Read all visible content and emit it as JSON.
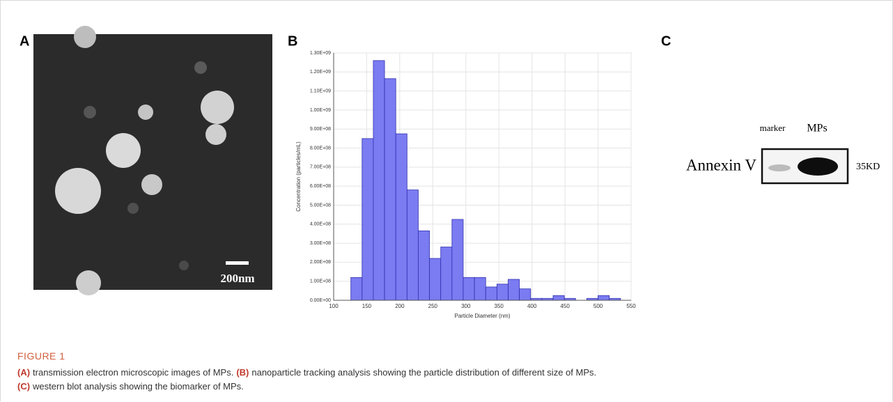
{
  "panels": {
    "a": {
      "label": "A",
      "scale_bar": "200nm"
    },
    "b": {
      "label": "B"
    },
    "c": {
      "label": "C",
      "lanes": [
        "marker",
        "MPs"
      ],
      "protein": "Annexin V",
      "size": "35KD"
    }
  },
  "chart_data": {
    "type": "histogram",
    "xlabel": "Particle Diameter (nm)",
    "ylabel": "Concentration (particles/mL)",
    "bins": [
      126,
      143,
      160,
      177,
      194,
      211,
      228,
      245,
      262,
      279,
      296,
      313,
      330,
      347,
      364,
      381,
      398,
      415,
      432,
      449,
      466,
      483,
      500,
      517,
      534
    ],
    "values": [
      120000000,
      850000000,
      1260000000,
      1165000000,
      875000000,
      580000000,
      365000000,
      220000000,
      280000000,
      425000000,
      120000000,
      120000000,
      70000000,
      85000000,
      110000000,
      60000000,
      10000000,
      10000000,
      25000000,
      10000000,
      0,
      10000000,
      25000000,
      10000000
    ],
    "color": "#7b7bf2",
    "xlim": [
      100,
      550
    ],
    "ylim": [
      0,
      1300000000
    ],
    "xticks": [
      100,
      150,
      200,
      250,
      300,
      350,
      400,
      450,
      500,
      550
    ],
    "yticks": [
      {
        "value": 0,
        "label": "0.00E+00"
      },
      {
        "value": 100000000,
        "label": "1.00E+08"
      },
      {
        "value": 200000000,
        "label": "2.00E+08"
      },
      {
        "value": 300000000,
        "label": "3.00E+08"
      },
      {
        "value": 400000000,
        "label": "4.00E+08"
      },
      {
        "value": 500000000,
        "label": "5.00E+08"
      },
      {
        "value": 600000000,
        "label": "6.00E+08"
      },
      {
        "value": 700000000,
        "label": "7.00E+08"
      },
      {
        "value": 800000000,
        "label": "8.00E+08"
      },
      {
        "value": 900000000,
        "label": "9.00E+08"
      },
      {
        "value": 1000000000,
        "label": "1.00E+09"
      },
      {
        "value": 1100000000,
        "label": "1.10E+09"
      },
      {
        "value": 1200000000,
        "label": "1.20E+09"
      },
      {
        "value": 1300000000,
        "label": "1.30E+09"
      }
    ],
    "grid": true
  },
  "caption": {
    "figure": "FIGURE 1",
    "parts": [
      {
        "label": "(A)",
        "text": "transmission electron microscopic images of MPs."
      },
      {
        "label": "(B)",
        "text": "nanoparticle tracking analysis showing the particle distribution of different size of MPs."
      },
      {
        "label": "(C)",
        "text": "western blot analysis showing the biomarker of MPs."
      }
    ]
  }
}
